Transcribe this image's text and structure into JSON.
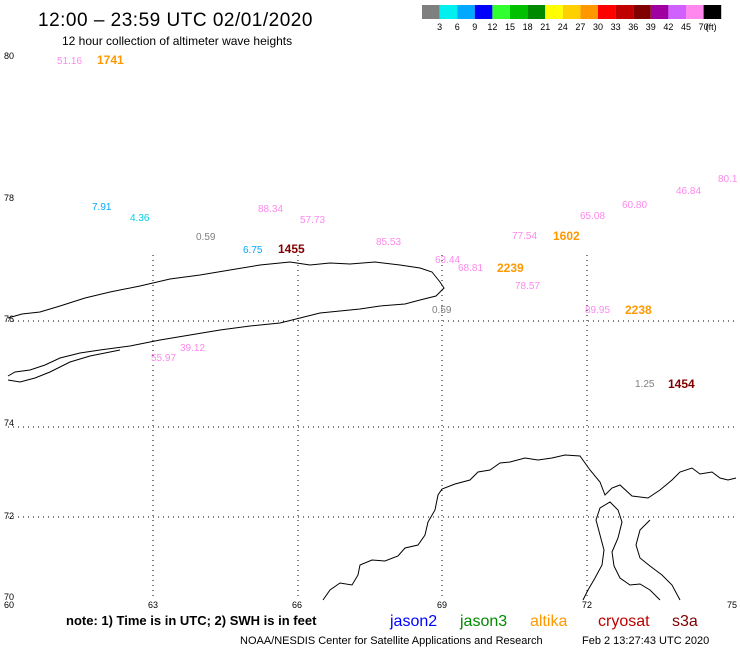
{
  "title": "12:00 – 23:59 UTC 02/01/2020",
  "subtitle": "12 hour collection of altimeter wave heights",
  "legend": {
    "unit": "(ft)",
    "bins": [
      {
        "label": "3",
        "color": "#7f7f7f"
      },
      {
        "label": "6",
        "color": "#00f0f0"
      },
      {
        "label": "9",
        "color": "#00a8ff"
      },
      {
        "label": "12",
        "color": "#0000ff"
      },
      {
        "label": "15",
        "color": "#30ff30"
      },
      {
        "label": "18",
        "color": "#00c000"
      },
      {
        "label": "21",
        "color": "#008a00"
      },
      {
        "label": "24",
        "color": "#ffff00"
      },
      {
        "label": "27",
        "color": "#ffd000"
      },
      {
        "label": "30",
        "color": "#ff9800"
      },
      {
        "label": "33",
        "color": "#ff0000"
      },
      {
        "label": "36",
        "color": "#c00000"
      },
      {
        "label": "39",
        "color": "#800000"
      },
      {
        "label": "42",
        "color": "#a000a0"
      },
      {
        "label": "45",
        "color": "#d060ff"
      },
      {
        "label": "70",
        "color": "#ff88ee"
      },
      {
        "label": "",
        "color": "#000000"
      }
    ]
  },
  "axes": {
    "lat_labels": [
      "80",
      "78",
      "76",
      "74",
      "72",
      "70"
    ],
    "lon_labels": [
      "60",
      "63",
      "66",
      "69",
      "72",
      "75"
    ]
  },
  "observations": [
    {
      "text": "51.16",
      "color": "#ff88ee"
    },
    {
      "text": "1741",
      "color": "#ff9800",
      "pass": true
    },
    {
      "text": "80.1",
      "color": "#ff88ee"
    },
    {
      "text": "46.84",
      "color": "#ff88ee"
    },
    {
      "text": "60.80",
      "color": "#ff88ee"
    },
    {
      "text": "65.08",
      "color": "#ff88ee"
    },
    {
      "text": "7.91",
      "color": "#00a8ff"
    },
    {
      "text": "4.36",
      "color": "#00d0e0"
    },
    {
      "text": "88.34",
      "color": "#ff88ee"
    },
    {
      "text": "57.73",
      "color": "#ff88ee"
    },
    {
      "text": "0.59",
      "color": "#7f7f7f"
    },
    {
      "text": "6.75",
      "color": "#00a8ff"
    },
    {
      "text": "1455",
      "color": "#800000",
      "pass": true
    },
    {
      "text": "85.53",
      "color": "#ff88ee"
    },
    {
      "text": "77.54",
      "color": "#ff88ee"
    },
    {
      "text": "1602",
      "color": "#ff9800",
      "pass": true
    },
    {
      "text": "63.44",
      "color": "#ff88ee"
    },
    {
      "text": "68.81",
      "color": "#ff88ee"
    },
    {
      "text": "2239",
      "color": "#ff9800",
      "pass": true
    },
    {
      "text": "78.57",
      "color": "#ff88ee"
    },
    {
      "text": "0.59",
      "color": "#7f7f7f"
    },
    {
      "text": "89.95",
      "color": "#ff88ee"
    },
    {
      "text": "2238",
      "color": "#ff9800",
      "pass": true
    },
    {
      "text": "39.12",
      "color": "#ff88ee"
    },
    {
      "text": "55.97",
      "color": "#ff88ee"
    },
    {
      "text": "1.25",
      "color": "#7f7f7f"
    },
    {
      "text": "1454",
      "color": "#800000",
      "pass": true
    }
  ],
  "note": "note:  1) Time is in UTC;  2) SWH is in feet",
  "satellites": [
    {
      "name": "jason2",
      "color": "#0000ff"
    },
    {
      "name": "jason3",
      "color": "#008a00"
    },
    {
      "name": "altika",
      "color": "#ff9800"
    },
    {
      "name": "cryosat",
      "color": "#c00000"
    },
    {
      "name": "s3a",
      "color": "#800000"
    }
  ],
  "credit": "NOAA/NESDIS Center for Satellite Applications and Research",
  "timestamp": "Feb  2 13:27:43 UTC 2020"
}
